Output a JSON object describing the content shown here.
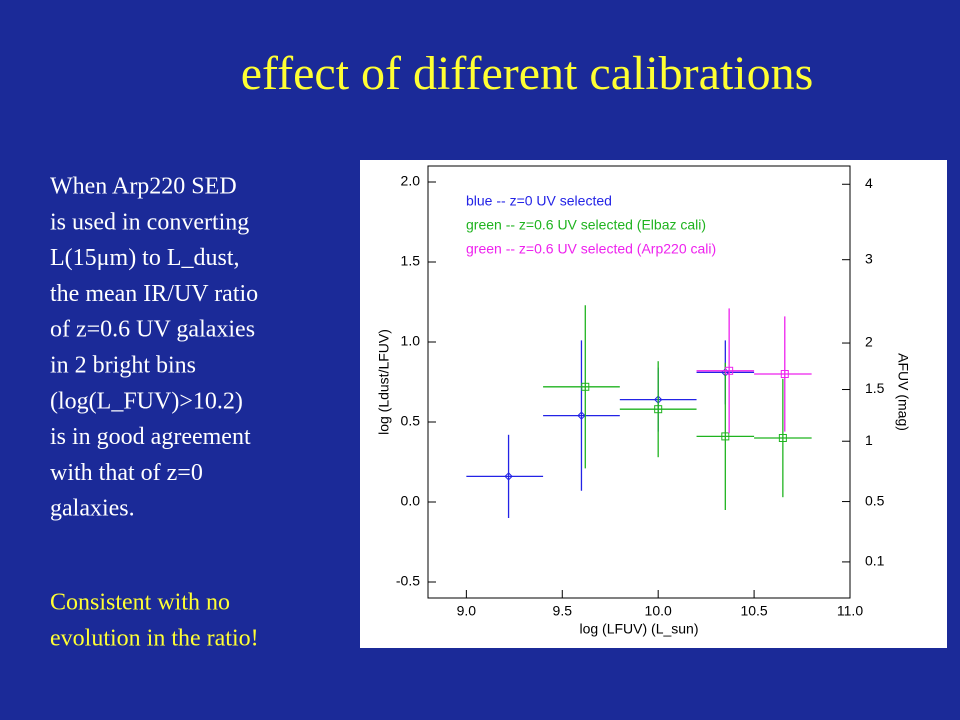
{
  "title": "effect of different calibrations",
  "text": {
    "paragraph": [
      "When Arp220 SED",
      "is used in converting",
      "L(15μm) to L_dust,",
      "the mean IR/UV ratio",
      "of z=0.6 UV galaxies",
      "in 2 bright bins",
      "(log(L_FUV)>10.2)",
      "is in good agreement",
      "with that of z=0",
      "galaxies."
    ],
    "conclusion": [
      "Consistent with no",
      "evolution in the ratio!"
    ]
  },
  "chart_data": {
    "type": "errorbar",
    "xlabel": "log (LFUV) (L_sun)",
    "ylabel": "log (Ldust/LFUV)",
    "y2label": "AFUV (mag)",
    "xlim": [
      8.8,
      11.0
    ],
    "ylim": [
      -0.6,
      2.1
    ],
    "xticks": [
      {
        "value": 9,
        "label": "9.0"
      },
      {
        "value": 9.5,
        "label": "9.5"
      },
      {
        "value": 10,
        "label": "10.0"
      },
      {
        "value": 10.5,
        "label": "10.5"
      },
      {
        "value": 11,
        "label": "11.0"
      }
    ],
    "yticks": [
      {
        "value": -0.5,
        "label": "-0.5"
      },
      {
        "value": 0,
        "label": "0.0"
      },
      0.5,
      {
        "value": 1,
        "label": "1.0"
      },
      1.5,
      {
        "value": 2,
        "label": "2.0"
      }
    ],
    "y2ticks": [
      4,
      3,
      2,
      1.5,
      1,
      0.5,
      0.1
    ],
    "series": [
      {
        "name": "blue -- z=0 UV selected",
        "color": "#2323e6",
        "marker": "diamond",
        "x": [
          9.22,
          9.6,
          10.0,
          10.35
        ],
        "xrange": [
          [
            9.0,
            9.4
          ],
          [
            9.4,
            9.8
          ],
          [
            9.8,
            10.2
          ],
          [
            10.2,
            10.5
          ]
        ],
        "values": [
          0.16,
          0.54,
          0.64,
          0.81
        ],
        "yerr": [
          0.26,
          0.47,
          0.2,
          0.2
        ]
      },
      {
        "name": "green -- z=0.6 UV selected (Elbaz cali)",
        "color": "#1fb31f",
        "marker": "square",
        "x": [
          9.62,
          10.0,
          10.35,
          10.65
        ],
        "xrange": [
          [
            9.4,
            9.8
          ],
          [
            9.8,
            10.2
          ],
          [
            10.2,
            10.5
          ],
          [
            10.5,
            10.8
          ]
        ],
        "values": [
          0.72,
          0.58,
          0.41,
          0.4
        ],
        "yerr": [
          0.51,
          0.3,
          0.46,
          0.37
        ]
      },
      {
        "name": "green -- z=0.6 UV selected (Arp220 cali)",
        "color": "#ee22ee",
        "marker": "square",
        "x": [
          10.37,
          10.66
        ],
        "xrange": [
          [
            10.2,
            10.5
          ],
          [
            10.5,
            10.8
          ]
        ],
        "values": [
          0.82,
          0.8
        ],
        "yerr": [
          0.39,
          0.36
        ]
      }
    ]
  }
}
